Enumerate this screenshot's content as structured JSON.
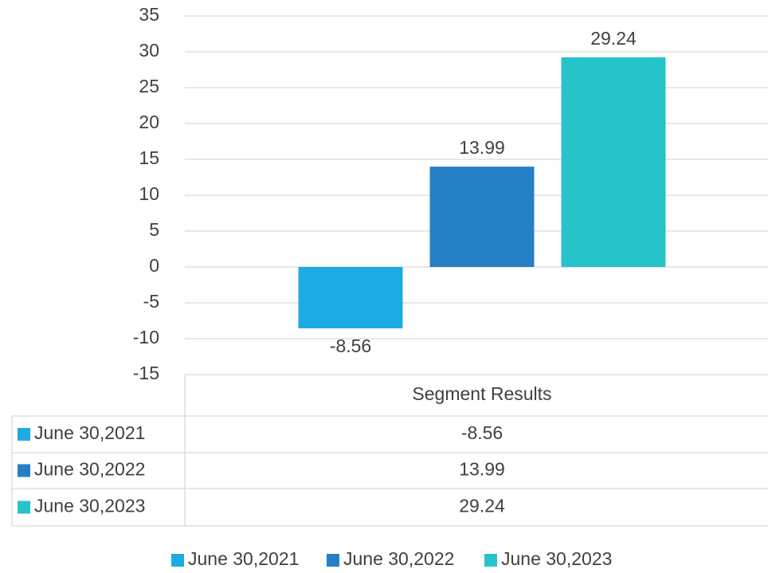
{
  "chart_data": {
    "type": "bar",
    "categories": [
      "Segment Results"
    ],
    "series": [
      {
        "name": "June 30,2021",
        "color": "#1eaae2",
        "values": [
          -8.56
        ]
      },
      {
        "name": "June 30,2022",
        "color": "#2680c6",
        "values": [
          13.99
        ]
      },
      {
        "name": "June 30,2023",
        "color": "#27c3cb",
        "values": [
          29.24
        ]
      }
    ],
    "ylim": [
      -15,
      35
    ],
    "yticks": [
      -15,
      -10,
      -5,
      0,
      5,
      10,
      15,
      20,
      25,
      30,
      35
    ],
    "grid": true,
    "data_table": true,
    "legend": "bottom"
  }
}
